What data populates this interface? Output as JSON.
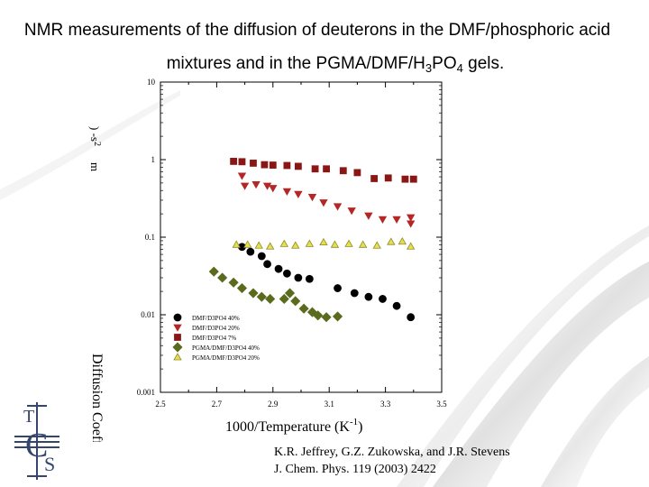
{
  "slide": {
    "title_line1": "NMR measurements of the diffusion of deuterons in the DMF/phosphoric acid",
    "title_line2_prefix": "mixtures and in the PGMA/DMF/H",
    "title_line2_sub1": "3",
    "title_line2_mid": "PO",
    "title_line2_sub2": "4",
    "title_line2_suffix": " gels.",
    "citation_line1": "K.R. Jeffrey, G.Z. Zukowska, and J.R. Stevens",
    "citation_line2": "J. Chem. Phys. 119 (2003) 2422",
    "logo": {
      "letters": [
        "T",
        "C",
        "S"
      ],
      "icon": "tcs-logo-icon"
    }
  },
  "chart_data": {
    "type": "scatter",
    "xlabel": "1000/Temperature (K",
    "xlabel_sup": "-1",
    "xlabel_close": ")",
    "ylabel": "Diffusion Coeffi",
    "ylabel_fragment_top": ") -s",
    "ylabel_fragment_sup": "2",
    "ylabel_fragment_unit": "m",
    "xlim": [
      2.5,
      3.5
    ],
    "ylim_log10": [
      -3,
      1
    ],
    "y_scale": "log",
    "x_ticks": [
      "2.5",
      "2.7",
      "2.9",
      "3.1",
      "3.3",
      "3.5"
    ],
    "x_tick_values": [
      2.5,
      2.7,
      2.9,
      3.1,
      3.3,
      3.5
    ],
    "y_ticks": [
      "10",
      "1",
      "0.1",
      "0.01",
      "0.001"
    ],
    "y_tick_values": [
      10,
      1,
      0.1,
      0.01,
      0.001
    ],
    "legend_placement": "bottom-left",
    "series": [
      {
        "name": "DMF/D3PO4 40%",
        "marker": "circle",
        "color": "#000000",
        "points": [
          [
            2.79,
            0.075
          ],
          [
            2.82,
            0.065
          ],
          [
            2.86,
            0.057
          ],
          [
            2.88,
            0.045
          ],
          [
            2.92,
            0.039
          ],
          [
            2.95,
            0.034
          ],
          [
            2.99,
            0.03
          ],
          [
            3.03,
            0.029
          ],
          [
            3.13,
            0.022
          ],
          [
            3.19,
            0.019
          ],
          [
            3.24,
            0.017
          ],
          [
            3.29,
            0.016
          ],
          [
            3.34,
            0.013
          ],
          [
            3.39,
            0.0093
          ]
        ]
      },
      {
        "name": "DMF/D3PO4 20%",
        "marker": "triangle-down",
        "color": "#b52727",
        "points": [
          [
            2.79,
            0.62
          ],
          [
            2.8,
            0.46
          ],
          [
            2.84,
            0.48
          ],
          [
            2.88,
            0.46
          ],
          [
            2.9,
            0.43
          ],
          [
            2.95,
            0.39
          ],
          [
            2.99,
            0.36
          ],
          [
            3.04,
            0.33
          ],
          [
            3.08,
            0.28
          ],
          [
            3.13,
            0.25
          ],
          [
            3.18,
            0.22
          ],
          [
            3.24,
            0.19
          ],
          [
            3.29,
            0.17
          ],
          [
            3.34,
            0.17
          ],
          [
            3.39,
            0.15
          ],
          [
            3.39,
            0.18
          ]
        ]
      },
      {
        "name": "DMF/D3PO4 7%",
        "marker": "square",
        "color": "#8b1616",
        "points": [
          [
            2.76,
            0.95
          ],
          [
            2.79,
            0.94
          ],
          [
            2.83,
            0.9
          ],
          [
            2.87,
            0.86
          ],
          [
            2.9,
            0.85
          ],
          [
            2.95,
            0.84
          ],
          [
            2.99,
            0.82
          ],
          [
            3.05,
            0.76
          ],
          [
            3.09,
            0.76
          ],
          [
            3.15,
            0.72
          ],
          [
            3.2,
            0.68
          ],
          [
            3.26,
            0.57
          ],
          [
            3.31,
            0.58
          ],
          [
            3.37,
            0.56
          ],
          [
            3.4,
            0.56
          ]
        ]
      },
      {
        "name": "PGMA/DMF/D3PO4 40%",
        "marker": "diamond",
        "color": "#5a6b1e",
        "points": [
          [
            2.69,
            0.036
          ],
          [
            2.72,
            0.03
          ],
          [
            2.76,
            0.026
          ],
          [
            2.79,
            0.022
          ],
          [
            2.83,
            0.019
          ],
          [
            2.86,
            0.017
          ],
          [
            2.89,
            0.016
          ],
          [
            2.94,
            0.016
          ],
          [
            2.96,
            0.019
          ],
          [
            2.98,
            0.015
          ],
          [
            3.01,
            0.012
          ],
          [
            3.04,
            0.0108
          ],
          [
            3.06,
            0.0098
          ],
          [
            3.09,
            0.0093
          ],
          [
            3.13,
            0.0095
          ]
        ]
      },
      {
        "name": "PGMA/DMF/D3PO4 20%",
        "marker": "triangle-up",
        "color": "#e8e04a",
        "points": [
          [
            2.77,
            0.08
          ],
          [
            2.81,
            0.08
          ],
          [
            2.85,
            0.078
          ],
          [
            2.89,
            0.076
          ],
          [
            2.94,
            0.082
          ],
          [
            2.98,
            0.078
          ],
          [
            3.03,
            0.082
          ],
          [
            3.08,
            0.086
          ],
          [
            3.12,
            0.08
          ],
          [
            3.17,
            0.082
          ],
          [
            3.22,
            0.08
          ],
          [
            3.27,
            0.078
          ],
          [
            3.32,
            0.087
          ],
          [
            3.36,
            0.088
          ],
          [
            3.39,
            0.076
          ]
        ]
      }
    ]
  }
}
